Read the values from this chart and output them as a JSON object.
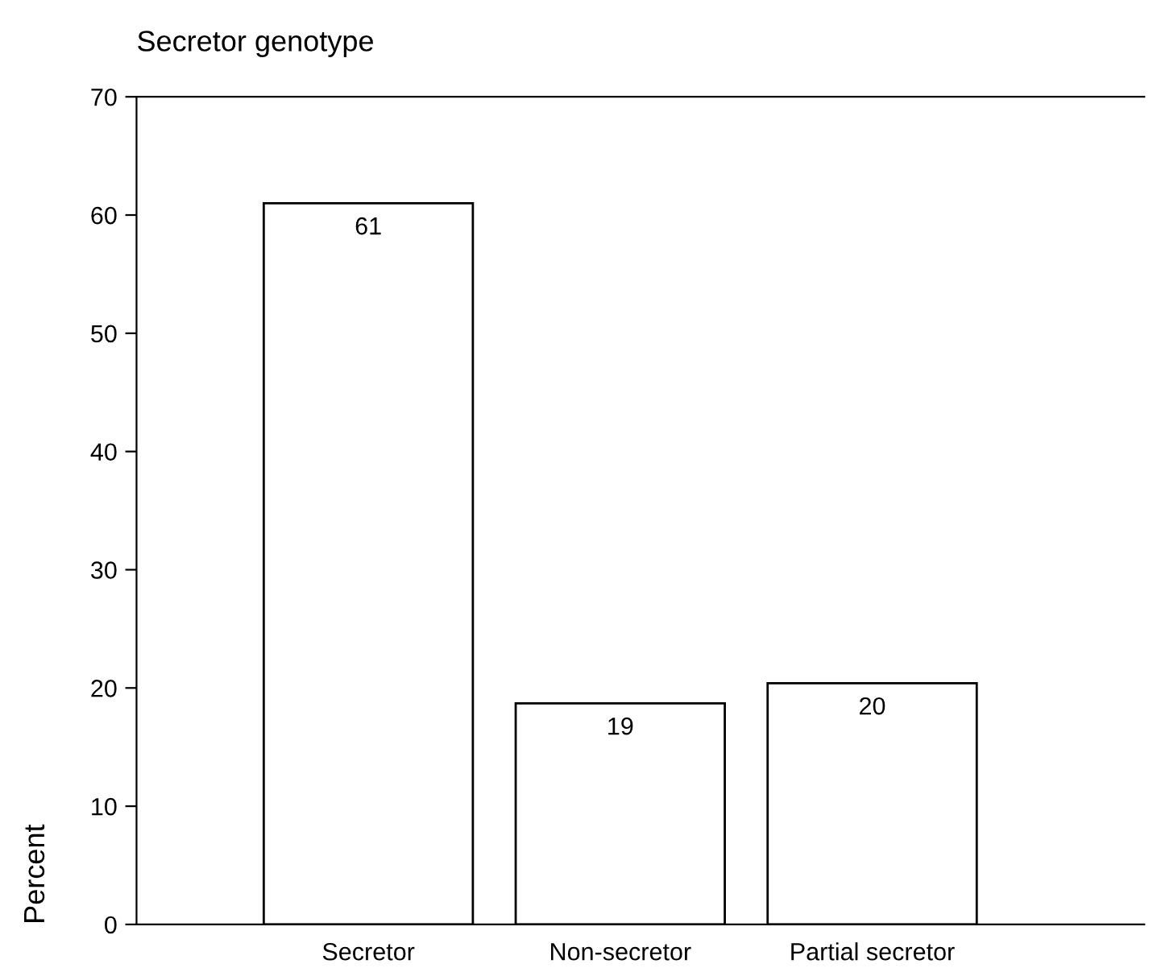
{
  "chart_data": {
    "type": "bar",
    "title": "Secretor genotype",
    "ylabel": "Percent",
    "categories": [
      "Secretor",
      "Non-secretor",
      "Partial secretor"
    ],
    "values": [
      61,
      18.7,
      20.4
    ],
    "value_labels": [
      "61",
      "19",
      "20"
    ],
    "color": "#ffffff",
    "ylim": [
      0,
      70
    ],
    "yticks": [
      0,
      10,
      20,
      30,
      40,
      50,
      60,
      70
    ],
    "grid": false,
    "legend": false
  }
}
